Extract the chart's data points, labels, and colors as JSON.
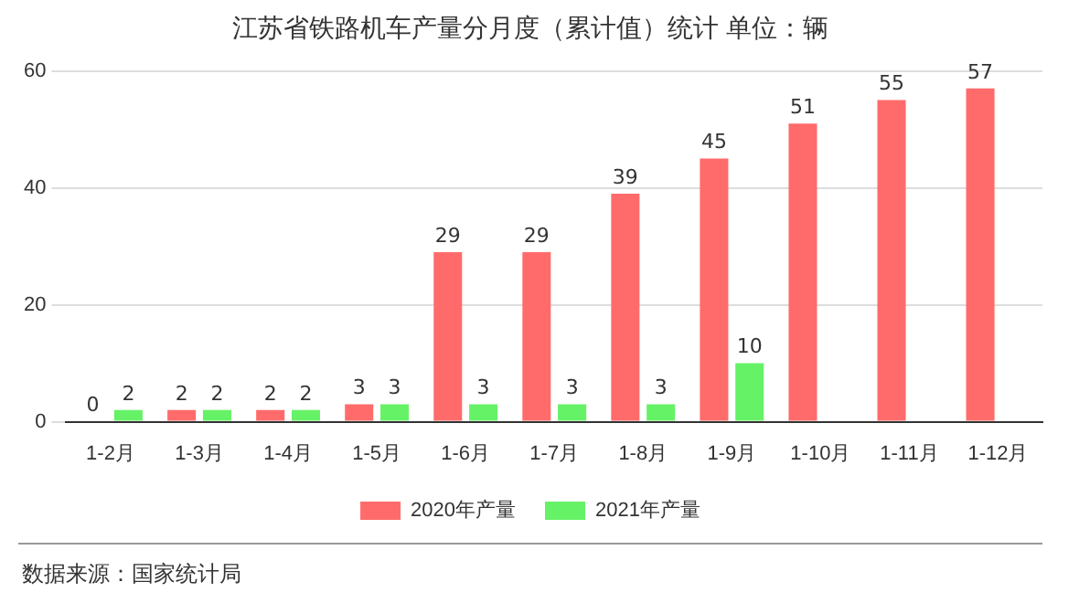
{
  "chart_data": {
    "type": "bar",
    "title": "江苏省铁路机车产量分月度（累计值）统计 单位：辆",
    "categories": [
      "1-2月",
      "1-3月",
      "1-4月",
      "1-5月",
      "1-6月",
      "1-7月",
      "1-8月",
      "1-9月",
      "1-10月",
      "1-11月",
      "1-12月"
    ],
    "series": [
      {
        "name": "2020年产量",
        "color": "#ff6b6b",
        "values": [
          0,
          2,
          2,
          3,
          29,
          29,
          39,
          45,
          51,
          55,
          57
        ]
      },
      {
        "name": "2021年产量",
        "color": "#66f266",
        "values": [
          2,
          2,
          2,
          3,
          3,
          3,
          3,
          10,
          null,
          null,
          null
        ]
      }
    ],
    "ylim": [
      0,
      60
    ],
    "yticks": [
      0,
      20,
      40,
      60
    ],
    "grid": "y",
    "legend": "bottom",
    "data_labels": true,
    "annotations": [
      "数据来源：国家统计局"
    ]
  }
}
